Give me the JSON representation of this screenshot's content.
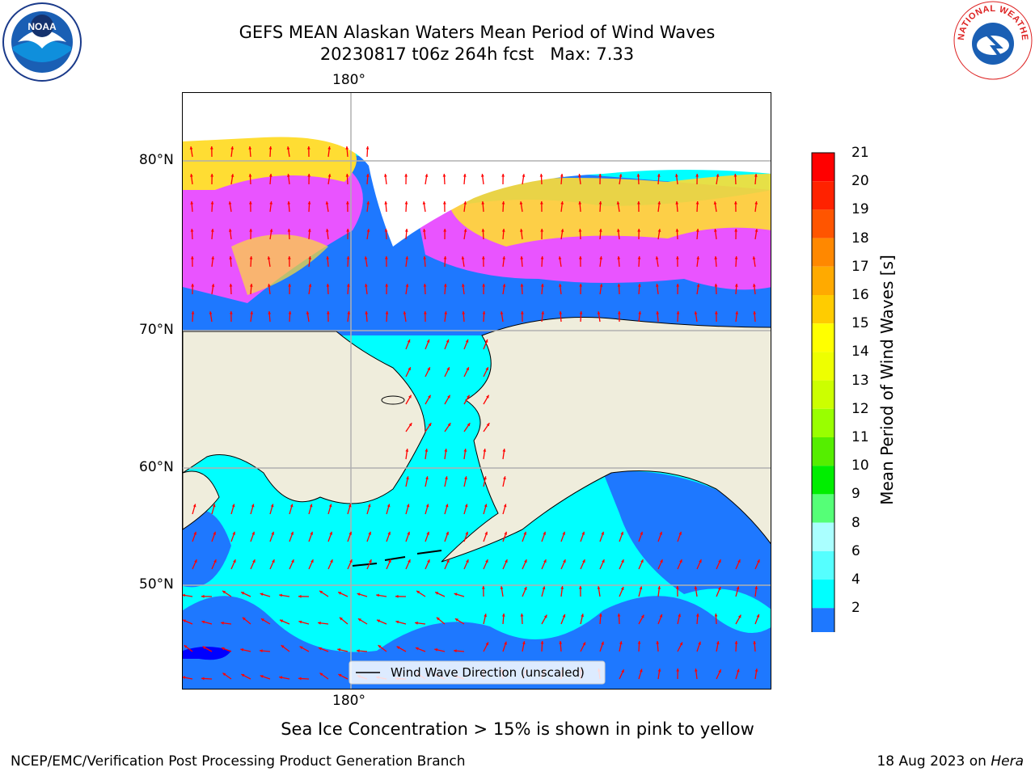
{
  "title": {
    "line1": "GEFS MEAN Alaskan Waters Mean Period of Wind Waves",
    "line2": "20230817 t06z 264h fcst   Max: 7.33"
  },
  "map": {
    "top_lon_label": "180°",
    "bottom_lon_label": "180°",
    "lat_labels": [
      "80°N",
      "70°N",
      "60°N",
      "50°N"
    ],
    "legend_label": "Wind Wave Direction (unscaled)",
    "colors": {
      "land": "#efeddc",
      "ocean_low": "#1e78ff",
      "ocean_mid": "#00ffff",
      "ocean_deep": "#0000ff",
      "ice_pink": "#ff50ff",
      "ice_yellow": "#ffdd33",
      "arrow": "#ff0000",
      "grid": "#b0b0b0"
    }
  },
  "colorbar": {
    "label": "Mean Period of Wind Waves [s]",
    "tick_labels": [
      "21",
      "20",
      "19",
      "18",
      "17",
      "16",
      "15",
      "14",
      "13",
      "12",
      "11",
      "10",
      "9",
      "8",
      "6",
      "4",
      "2"
    ],
    "colors": [
      "#ff0000",
      "#ff2200",
      "#ff5500",
      "#ff8800",
      "#ffaa00",
      "#ffcc00",
      "#ffff00",
      "#eeff00",
      "#ccff00",
      "#99ff00",
      "#55ee00",
      "#00ee00",
      "#55ff77",
      "#aaffff",
      "#55ffff",
      "#00ffff",
      "#1e78ff"
    ],
    "extend_color": "#0000ff"
  },
  "caption": "Sea Ice Concentration > 15% is shown in pink to yellow",
  "footer": {
    "left": "NCEP/EMC/Verification Post Processing Product Generation Branch",
    "date": "18 Aug 2023 on ",
    "machine": "Hera"
  },
  "logos": {
    "noaa_text": "NOAA",
    "nws_text": "NATIONAL WEATHER SERVICE"
  }
}
